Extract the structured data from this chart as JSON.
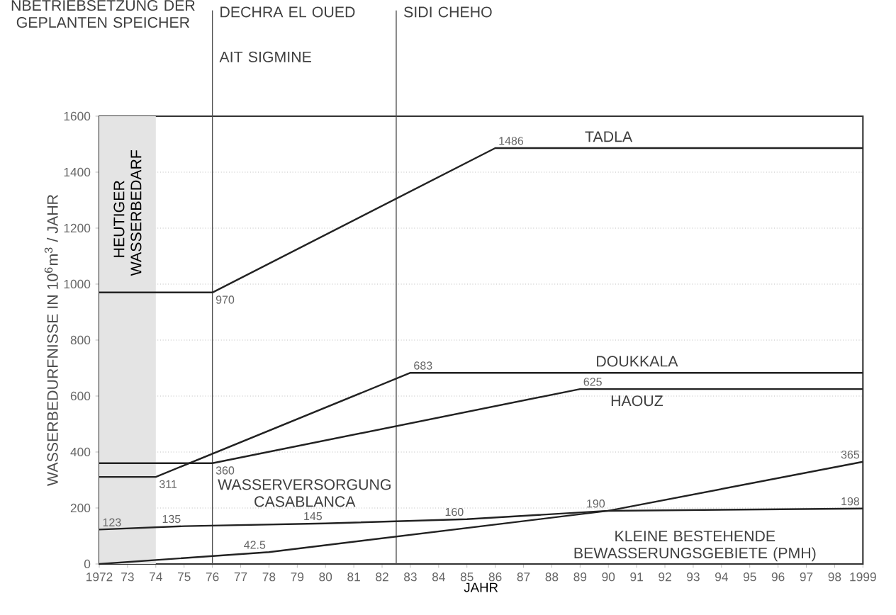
{
  "chart_data": {
    "type": "line",
    "xlabel": "JAHR",
    "ylabel": "WASSERBEDURFNISSE IN 10$^{6}$m$^{3}$ / JAHR",
    "xlim": [
      1972,
      1999
    ],
    "ylim": [
      0,
      1600
    ],
    "xticks": [
      1972,
      {
        "value": 1973,
        "label": "73"
      },
      {
        "value": 1974,
        "label": "74"
      },
      {
        "value": 1975,
        "label": "75"
      },
      {
        "value": 1976,
        "label": "76"
      },
      {
        "value": 1977,
        "label": "77"
      },
      {
        "value": 1978,
        "label": "78"
      },
      {
        "value": 1979,
        "label": "79"
      },
      {
        "value": 1980,
        "label": "80"
      },
      {
        "value": 1981,
        "label": "81"
      },
      {
        "value": 1982,
        "label": "82"
      },
      {
        "value": 1983,
        "label": "83"
      },
      {
        "value": 1984,
        "label": "84"
      },
      {
        "value": 1985,
        "label": "85"
      },
      {
        "value": 1986,
        "label": "86"
      },
      {
        "value": 1987,
        "label": "87"
      },
      {
        "value": 1988,
        "label": "88"
      },
      {
        "value": 1989,
        "label": "89"
      },
      {
        "value": 1990,
        "label": "90"
      },
      {
        "value": 1991,
        "label": "91"
      },
      {
        "value": 1992,
        "label": "92"
      },
      {
        "value": 1993,
        "label": "93"
      },
      {
        "value": 1994,
        "label": "94"
      },
      {
        "value": 1995,
        "label": "95"
      },
      {
        "value": 1996,
        "label": "96"
      },
      {
        "value": 1997,
        "label": "97"
      },
      {
        "value": 1998,
        "label": "98"
      },
      1999
    ],
    "yticks": [
      0,
      200,
      400,
      600,
      800,
      1000,
      1200,
      1400,
      1600
    ],
    "grid": "y",
    "marker": "none",
    "line_style": "solid",
    "series": [
      {
        "color": "#222222",
        "x": [
          1972,
          1976,
          1986,
          1999
        ],
        "values": [
          970,
          970,
          1486,
          1486
        ],
        "value_labels": [
          null,
          "970",
          "1486",
          null
        ]
      },
      {
        "color": "#222222",
        "x": [
          1972,
          1974,
          1983,
          1999
        ],
        "values": [
          311,
          311,
          683,
          683
        ],
        "value_labels": [
          null,
          "311",
          "683",
          null
        ]
      },
      {
        "color": "#222222",
        "x": [
          1972,
          1976,
          1989,
          1999
        ],
        "values": [
          360,
          360,
          625,
          625
        ],
        "value_labels": [
          null,
          "360",
          "625",
          null
        ]
      },
      {
        "color": "#222222",
        "x": [
          1972,
          1975,
          1980,
          1985,
          1990,
          1999
        ],
        "values": [
          123,
          135,
          145,
          160,
          190,
          198
        ],
        "value_labels": [
          "123",
          "135",
          "145",
          "160",
          "190",
          "198"
        ]
      },
      {
        "color": "#222222",
        "x": [
          1972,
          1978,
          1990,
          1999
        ],
        "values": [
          0,
          42.5,
          190,
          365
        ],
        "value_labels": [
          null,
          "42.5",
          null,
          "365"
        ]
      }
    ],
    "annotations": [
      "TADLA",
      "DOUKKALA",
      "HAOUZ",
      "WASSERVERSORGUNG CASABLANCA",
      "KLEINE BESTEHENDE BEWASSERUNGSGEBIETE (PMH)",
      "NBETRIEBSETZUNG DER GEPLANTEN SPEICHER",
      "DECHRA EL OUED",
      "AIT SIGMINE",
      "SIDI CHEHO"
    ],
    "ref_lines": [
      {
        "axis": "x",
        "value": 1976
      },
      {
        "axis": "x",
        "value": 1982.5
      }
    ],
    "bands": [
      {
        "axis": "x",
        "from": 1972,
        "to": 1974,
        "label": "HEUTIGER WASSERBEDARF",
        "color": "#e4e4e4"
      }
    ]
  }
}
